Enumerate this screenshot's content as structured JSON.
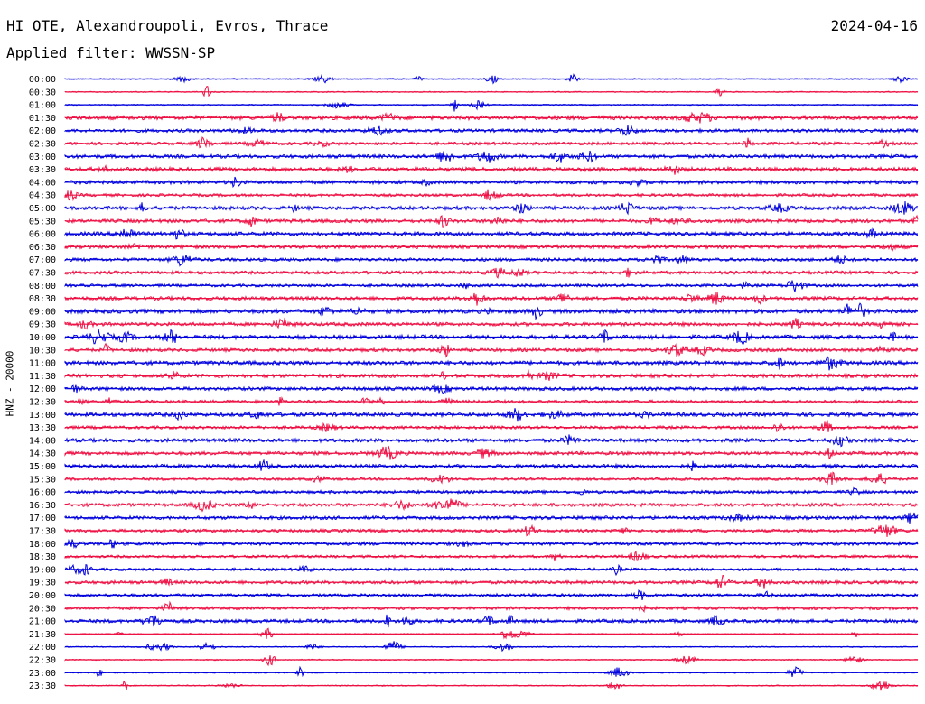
{
  "header": {
    "title": "HI OTE, Alexandroupoli, Evros, Thrace",
    "date": "2024-04-16",
    "filter": "Applied filter: WWSSN-SP"
  },
  "chart_data": {
    "type": "line",
    "title": "HI OTE, Alexandroupoli, Evros, Thrace",
    "subtitle": "Applied filter: WWSSN-SP",
    "ylabel": "HNZ - 20000",
    "xlabel": "",
    "grid": false,
    "series_colors": [
      "#0000dd",
      "#ee1144"
    ],
    "row_labels": [
      "00:00",
      "00:30",
      "01:00",
      "01:30",
      "02:00",
      "02:30",
      "03:00",
      "03:30",
      "04:00",
      "04:30",
      "05:00",
      "05:30",
      "06:00",
      "06:30",
      "07:00",
      "07:30",
      "08:00",
      "08:30",
      "09:00",
      "09:30",
      "10:00",
      "10:30",
      "11:00",
      "11:30",
      "12:00",
      "12:30",
      "13:00",
      "13:30",
      "14:00",
      "14:30",
      "15:00",
      "15:30",
      "16:00",
      "16:30",
      "17:00",
      "17:30",
      "18:00",
      "18:30",
      "19:00",
      "19:30",
      "20:00",
      "20:30",
      "21:00",
      "21:30",
      "22:00",
      "22:30",
      "23:00",
      "23:30"
    ]
  }
}
